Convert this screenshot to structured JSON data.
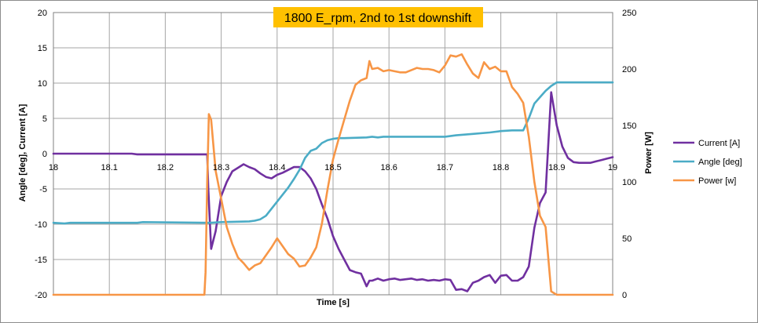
{
  "chart_data": {
    "type": "line",
    "title": "1800 E_rpm, 2nd to 1st downshift",
    "title_background": "#ffc000",
    "xlabel": "Time [s]",
    "ylabel_left": "Angle [deg], Current [A]",
    "ylabel_right": "Power [W]",
    "xlim": [
      18,
      19
    ],
    "ylim_left": [
      -20,
      20
    ],
    "ylim_right": [
      0,
      250
    ],
    "x_ticks": [
      "18",
      "18.1",
      "18.2",
      "18.3",
      "18.4",
      "18.5",
      "18.6",
      "18.7",
      "18.8",
      "18.9",
      "19"
    ],
    "y_ticks_left": [
      "20",
      "15",
      "10",
      "5",
      "0",
      "-5",
      "-10",
      "-15",
      "-20"
    ],
    "y_ticks_right": [
      "250",
      "200",
      "150",
      "100",
      "50",
      "0"
    ],
    "grid": true,
    "legend_position": "right",
    "series": [
      {
        "name": "Current [A]",
        "axis": "left",
        "color": "#7030a0",
        "x": [
          18,
          18.14,
          18.15,
          18.275,
          18.277,
          18.282,
          18.29,
          18.3,
          18.31,
          18.32,
          18.33,
          18.34,
          18.35,
          18.36,
          18.37,
          18.38,
          18.39,
          18.4,
          18.41,
          18.42,
          18.43,
          18.44,
          18.45,
          18.46,
          18.47,
          18.48,
          18.49,
          18.5,
          18.51,
          18.52,
          18.53,
          18.54,
          18.55,
          18.56,
          18.565,
          18.57,
          18.58,
          18.59,
          18.6,
          18.61,
          18.62,
          18.63,
          18.64,
          18.65,
          18.66,
          18.67,
          18.68,
          18.69,
          18.7,
          18.71,
          18.72,
          18.73,
          18.74,
          18.75,
          18.76,
          18.77,
          18.78,
          18.79,
          18.8,
          18.81,
          18.82,
          18.83,
          18.84,
          18.85,
          18.86,
          18.87,
          18.88,
          18.89,
          18.9,
          18.91,
          18.92,
          18.93,
          18.94,
          18.95,
          18.96,
          18.97,
          18.98,
          18.99,
          19.0
        ],
        "values": [
          0,
          0,
          -0.1,
          -0.1,
          -5,
          -13.5,
          -11,
          -6,
          -4,
          -2.5,
          -2,
          -1.5,
          -1.9,
          -2.2,
          -2.8,
          -3.3,
          -3.5,
          -3,
          -2.7,
          -2.3,
          -1.9,
          -1.9,
          -2.5,
          -3.5,
          -5,
          -7.2,
          -9.2,
          -11.7,
          -13.5,
          -15,
          -16.5,
          -16.8,
          -17,
          -18.8,
          -18,
          -18,
          -17.7,
          -18,
          -17.8,
          -17.7,
          -17.9,
          -17.8,
          -17.7,
          -17.9,
          -17.8,
          -18,
          -17.9,
          -18,
          -17.8,
          -17.9,
          -19.3,
          -19.2,
          -19.5,
          -18.3,
          -18,
          -17.5,
          -17.2,
          -18.3,
          -17.3,
          -17.2,
          -18,
          -18,
          -17.5,
          -16,
          -10.5,
          -7,
          -5.5,
          8.7,
          4,
          1,
          -0.6,
          -1.2,
          -1.3,
          -1.3,
          -1.3,
          -1.1,
          -0.9,
          -0.7,
          -0.5
        ]
      },
      {
        "name": "Angle  [deg]",
        "axis": "left",
        "color": "#4bacc6",
        "x": [
          18,
          18.02,
          18.03,
          18.15,
          18.16,
          18.28,
          18.3,
          18.35,
          18.36,
          18.37,
          18.38,
          18.39,
          18.4,
          18.41,
          18.42,
          18.43,
          18.44,
          18.45,
          18.46,
          18.47,
          18.48,
          18.49,
          18.5,
          18.51,
          18.52,
          18.56,
          18.57,
          18.58,
          18.59,
          18.6,
          18.7,
          18.72,
          18.75,
          18.78,
          18.8,
          18.82,
          18.84,
          18.85,
          18.86,
          18.87,
          18.88,
          18.89,
          18.9,
          18.92,
          19.0
        ],
        "values": [
          -9.8,
          -9.9,
          -9.8,
          -9.8,
          -9.7,
          -9.8,
          -9.7,
          -9.6,
          -9.5,
          -9.3,
          -8.8,
          -7.8,
          -6.8,
          -5.8,
          -4.8,
          -3.6,
          -2.3,
          -0.6,
          0.4,
          0.7,
          1.5,
          1.9,
          2.1,
          2.2,
          2.2,
          2.3,
          2.4,
          2.3,
          2.4,
          2.4,
          2.4,
          2.6,
          2.8,
          3.0,
          3.2,
          3.3,
          3.3,
          5.0,
          7.1,
          8.0,
          8.9,
          9.6,
          10.1,
          10.1,
          10.1
        ]
      },
      {
        "name": "Power [w]",
        "axis": "right",
        "color": "#f79646",
        "x": [
          18,
          18.27,
          18.272,
          18.275,
          18.278,
          18.282,
          18.29,
          18.3,
          18.31,
          18.32,
          18.33,
          18.34,
          18.35,
          18.36,
          18.37,
          18.38,
          18.39,
          18.4,
          18.41,
          18.42,
          18.43,
          18.44,
          18.45,
          18.46,
          18.47,
          18.48,
          18.49,
          18.5,
          18.51,
          18.52,
          18.53,
          18.54,
          18.55,
          18.56,
          18.565,
          18.57,
          18.58,
          18.59,
          18.6,
          18.61,
          18.62,
          18.63,
          18.64,
          18.65,
          18.66,
          18.67,
          18.68,
          18.69,
          18.7,
          18.71,
          18.72,
          18.73,
          18.74,
          18.75,
          18.76,
          18.77,
          18.78,
          18.79,
          18.8,
          18.81,
          18.82,
          18.83,
          18.84,
          18.85,
          18.86,
          18.87,
          18.88,
          18.89,
          18.9,
          18.91,
          18.92,
          19.0
        ],
        "values": [
          0,
          0,
          20,
          100,
          160,
          155,
          110,
          85,
          60,
          45,
          33,
          28,
          22,
          26,
          28,
          35,
          42,
          50,
          43,
          36,
          32,
          25,
          26,
          33,
          42,
          63,
          93,
          120,
          138,
          155,
          172,
          186,
          190,
          192,
          207,
          200,
          201,
          198,
          199,
          198,
          197,
          197,
          199,
          201,
          200,
          200,
          199,
          197,
          203,
          212,
          211,
          213,
          204,
          196,
          192,
          206,
          200,
          202,
          198,
          198,
          184,
          178,
          170,
          140,
          100,
          70,
          60,
          3,
          0,
          0,
          0,
          0
        ]
      }
    ]
  }
}
